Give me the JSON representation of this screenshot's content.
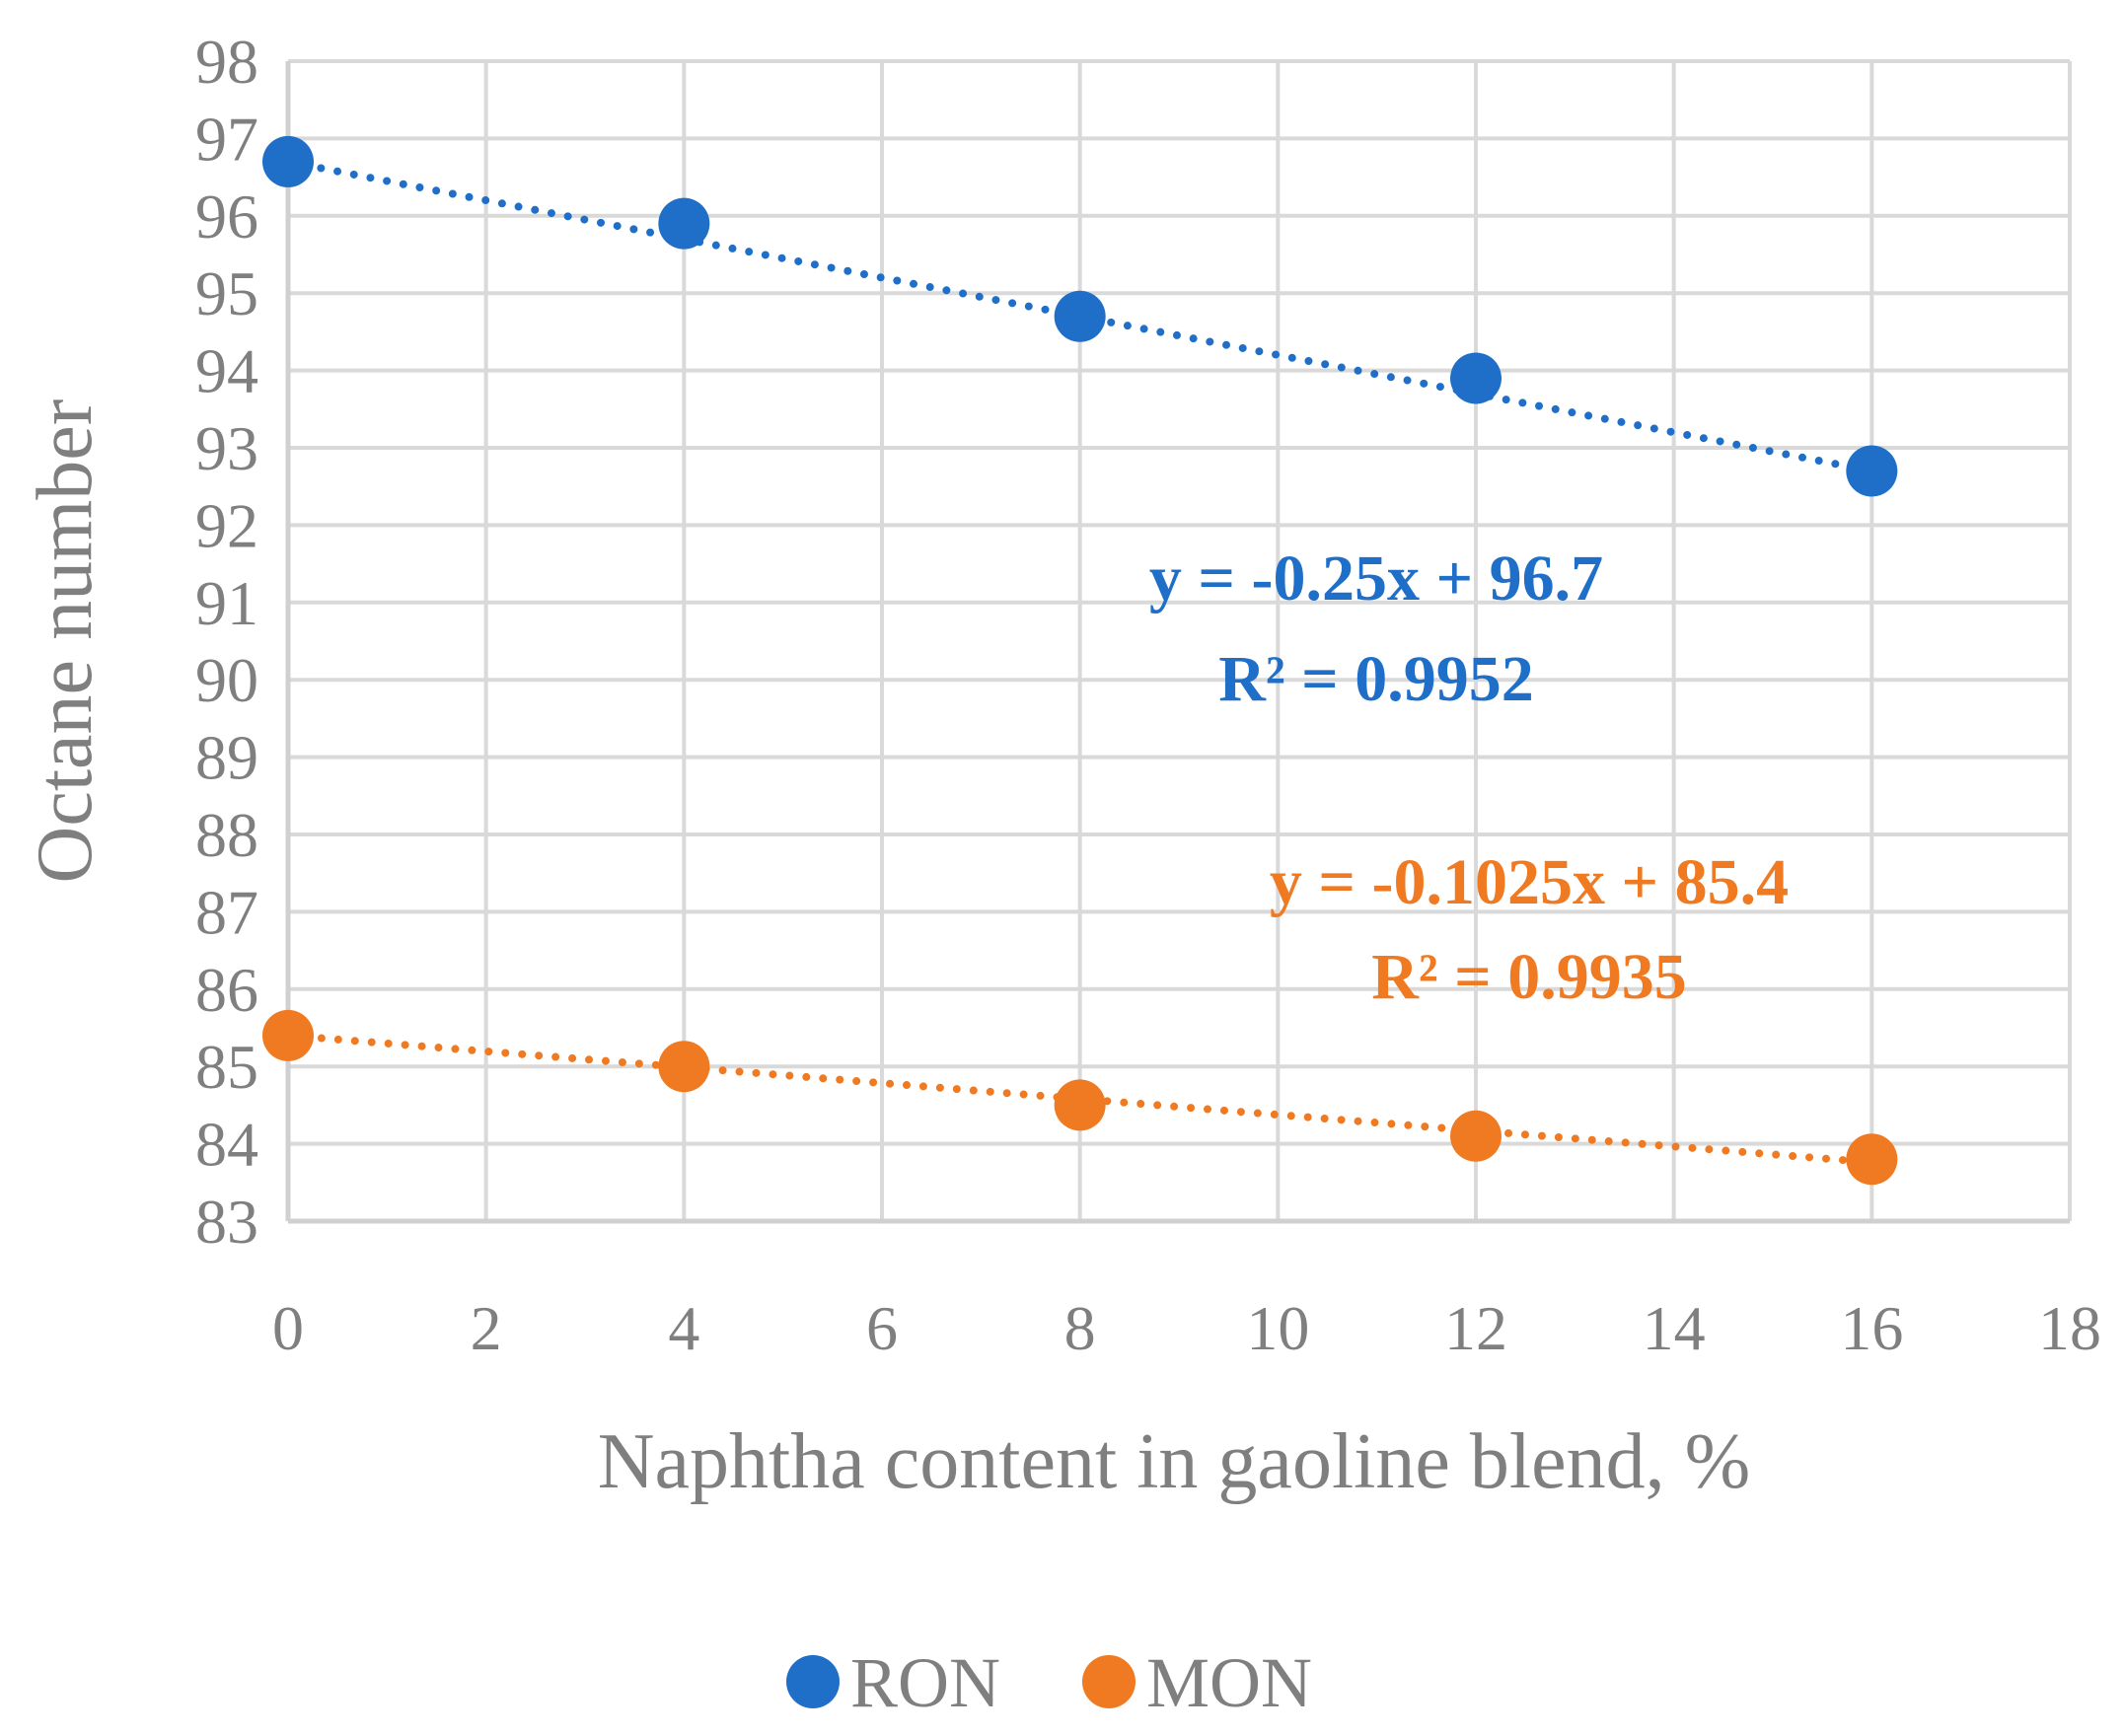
{
  "chart_data": {
    "type": "scatter",
    "xlabel": "Naphtha content in gaoline blend, %",
    "ylabel": "Octane number",
    "xlim": [
      0,
      18
    ],
    "ylim": [
      83,
      98
    ],
    "xticks": [
      "0",
      "2",
      "4",
      "6",
      "8",
      "10",
      "12",
      "14",
      "16",
      "18"
    ],
    "yticks": [
      "83",
      "84",
      "85",
      "86",
      "87",
      "88",
      "89",
      "90",
      "91",
      "92",
      "93",
      "94",
      "95",
      "96",
      "97",
      "98"
    ],
    "grid": true,
    "legend_position": "bottom",
    "series": [
      {
        "name": "RON",
        "color": "#1f6fc8",
        "x": [
          0,
          4,
          8,
          12,
          16
        ],
        "y": [
          96.7,
          95.9,
          94.7,
          93.9,
          92.7
        ],
        "trendline": {
          "slope": -0.25,
          "intercept": 96.7,
          "style": "dotted"
        },
        "equation": "y = -0.25x + 96.7",
        "r_squared": "R² = 0.9952"
      },
      {
        "name": "MON",
        "color": "#f07a22",
        "x": [
          0,
          4,
          8,
          12,
          16
        ],
        "y": [
          85.4,
          85.0,
          84.5,
          84.1,
          83.8
        ],
        "trendline": {
          "slope": -0.1025,
          "intercept": 85.4,
          "style": "dotted"
        },
        "equation": "y = -0.1025x + 85.4",
        "r_squared": "R² = 0.9935"
      }
    ]
  }
}
